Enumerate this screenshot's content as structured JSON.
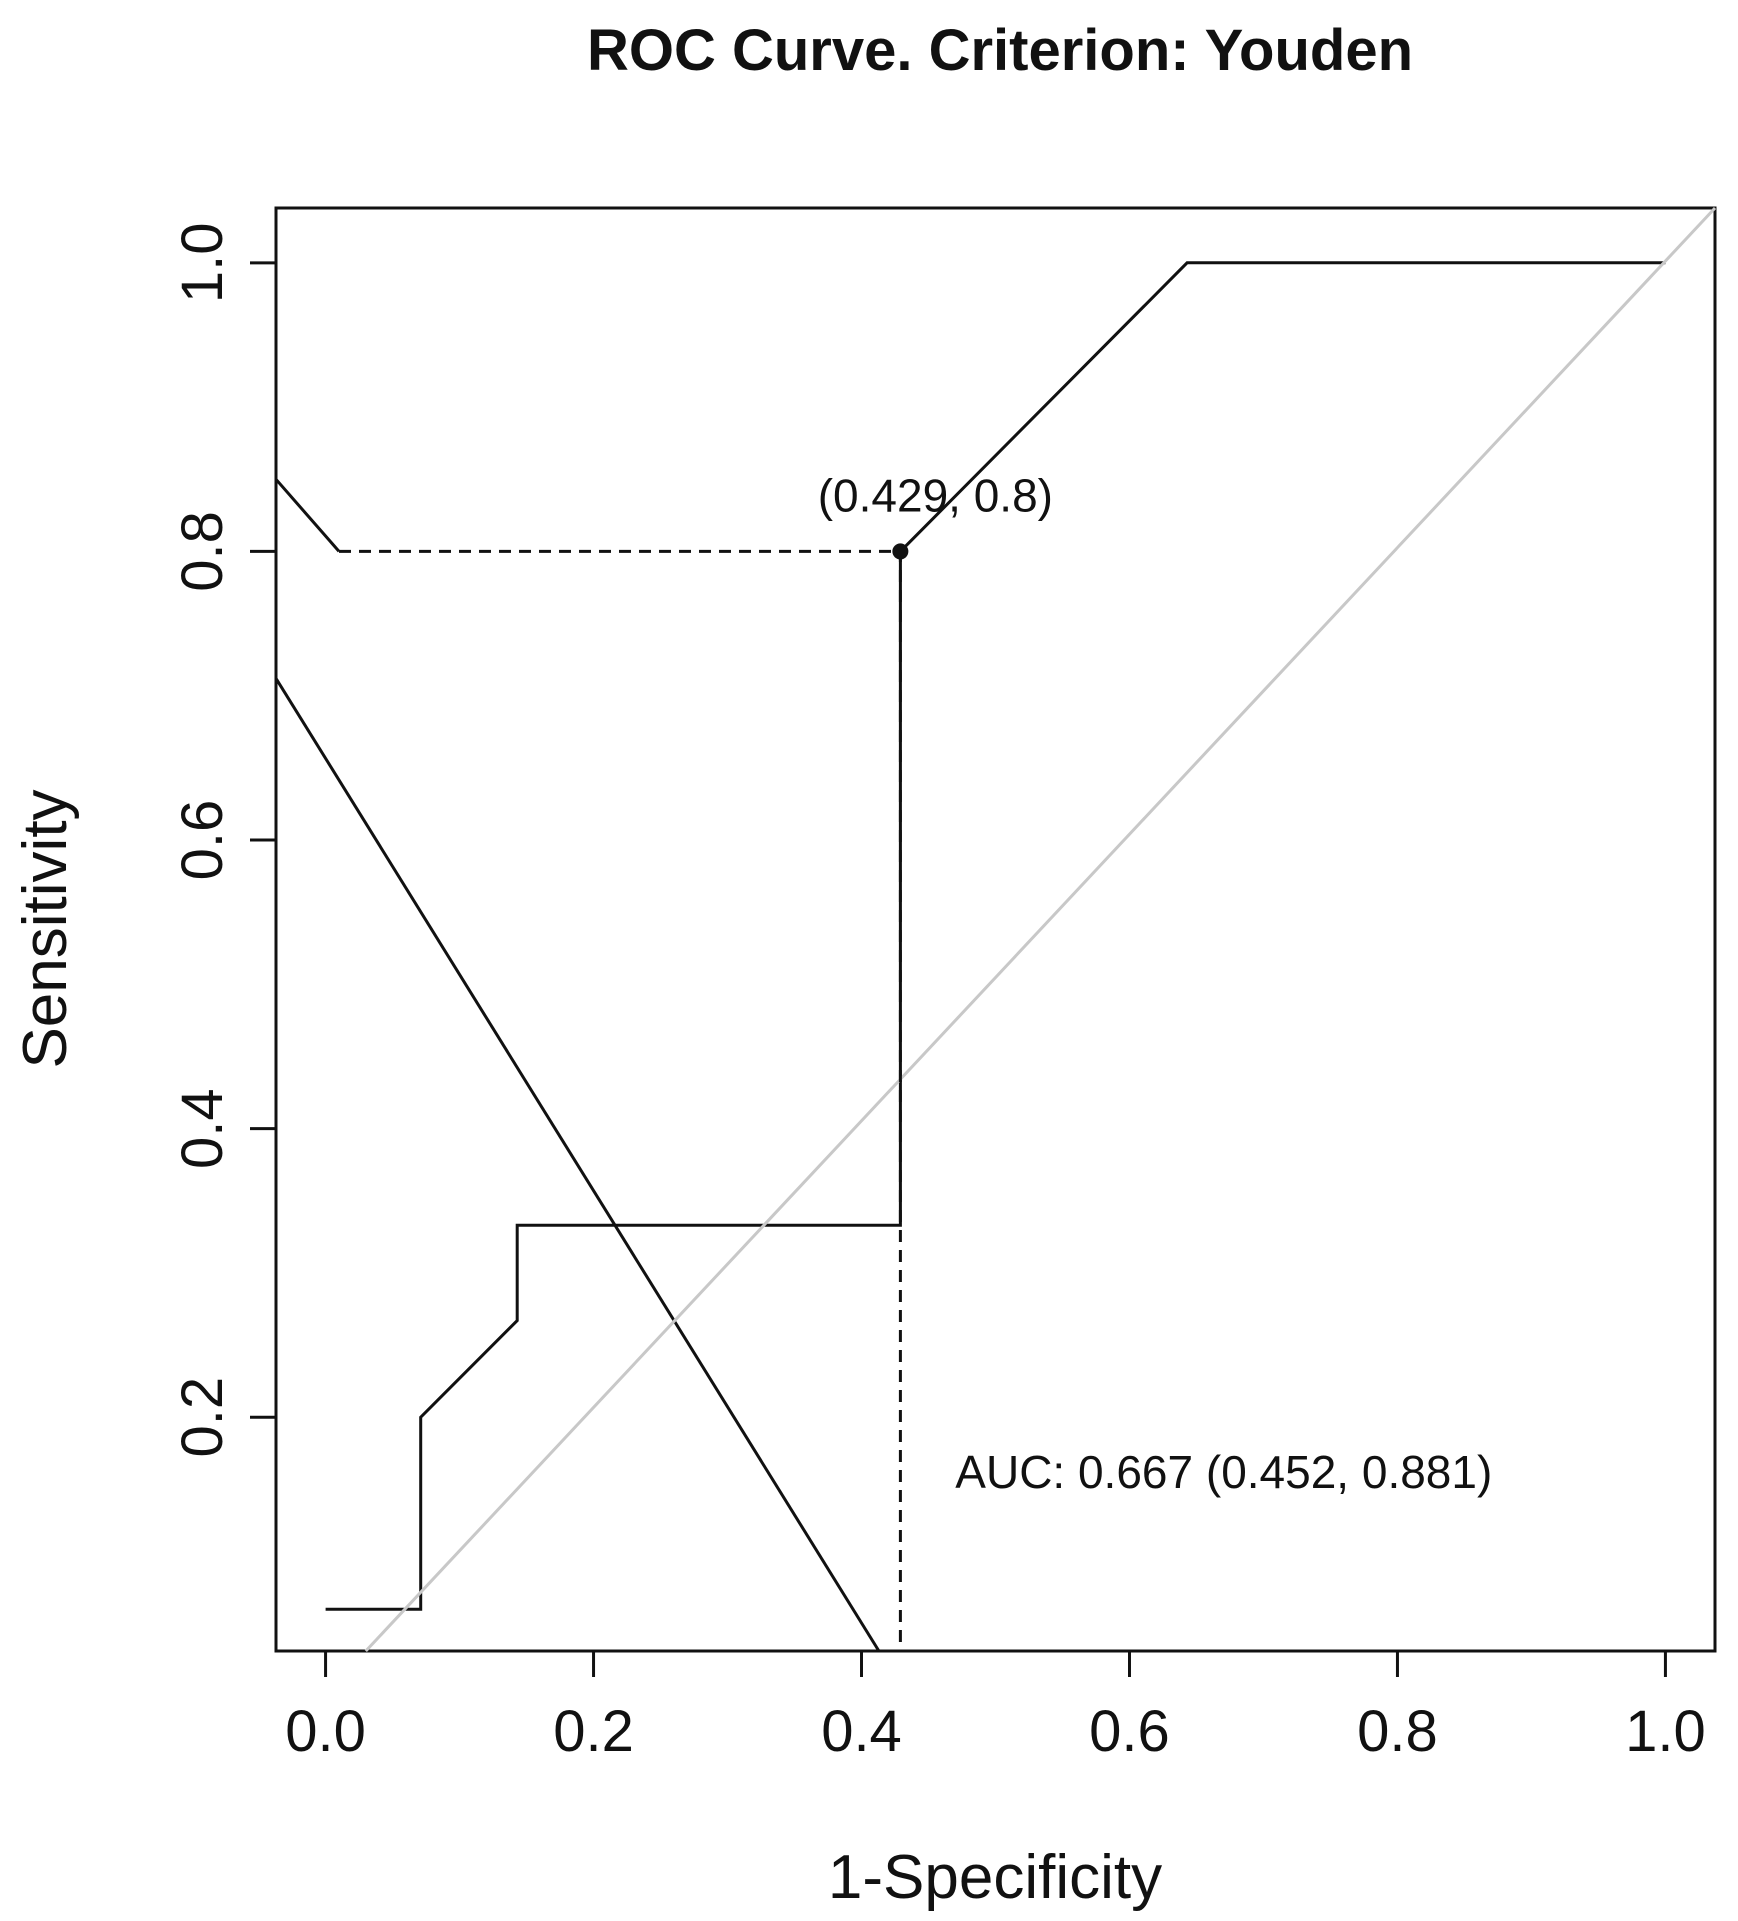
{
  "chart_data": {
    "type": "line",
    "title": "ROC Curve. Criterion: Youden",
    "xlabel": "1-Specificity",
    "ylabel": "Sensitivity",
    "xlim": [
      -0.037,
      1.037
    ],
    "ylim": [
      0.038,
      1.038
    ],
    "x_ticks": [
      0.0,
      0.2,
      0.4,
      0.6,
      0.8,
      1.0
    ],
    "x_tick_labels": [
      "0.0",
      "0.2",
      "0.4",
      "0.6",
      "0.8",
      "1.0"
    ],
    "y_ticks": [
      0.2,
      0.4,
      0.6,
      0.8,
      1.0
    ],
    "y_tick_labels": [
      "0.2",
      "0.4",
      "0.6",
      "0.8",
      "1.0"
    ],
    "grid": false,
    "legend": "none",
    "series": [
      {
        "style": "solid",
        "color": "#111111",
        "x": [
          0.0,
          0.071,
          0.071,
          0.143,
          0.143,
          0.429,
          0.429,
          0.643,
          1.0
        ],
        "y": [
          0.067,
          0.067,
          0.2,
          0.267,
          0.333,
          0.333,
          0.8,
          1.0,
          1.0
        ]
      },
      {
        "style": "solid",
        "color": "#111111",
        "x": [
          -0.037,
          0.413
        ],
        "y": [
          0.712,
          0.038
        ]
      },
      {
        "style": "solid",
        "color": "#111111",
        "x": [
          -0.037,
          0.01
        ],
        "y": [
          0.85,
          0.8
        ]
      },
      {
        "style": "solid",
        "color": "#c8c8c8",
        "x": [
          0.03,
          1.037
        ],
        "y": [
          0.038,
          1.038
        ]
      },
      {
        "style": "dashed",
        "color": "#111111",
        "x": [
          0.01,
          0.429,
          0.429
        ],
        "y": [
          0.8,
          0.8,
          0.038
        ]
      }
    ],
    "optimal_point": {
      "x": 0.429,
      "y": 0.8,
      "label": "(0.429, 0.8)"
    },
    "annotations": [
      {
        "text": "(0.429, 0.8)",
        "x": 0.429,
        "y": 0.8
      },
      {
        "text": "AUC: 0.667 (0.452, 0.881)",
        "x": 0.47,
        "y": 0.162
      }
    ]
  }
}
